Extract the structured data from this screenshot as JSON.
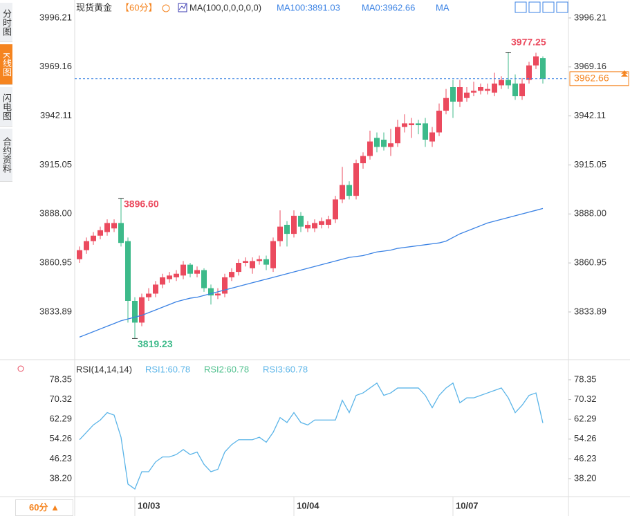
{
  "chart_data": [
    {
      "type": "candlestick",
      "title": "现货黄金",
      "period": "【60分】",
      "indicator": "MA(100,0,0,0,0,0)",
      "legend_extra": [
        "MA0:3962.66",
        "MA"
      ],
      "categories": [
        null,
        null,
        null,
        null,
        null,
        null,
        null,
        null,
        "10/03",
        null,
        null,
        null,
        null,
        null,
        null,
        null,
        null,
        null,
        null,
        null,
        null,
        null,
        null,
        null,
        null,
        null,
        null,
        null,
        null,
        null,
        null,
        "10/04",
        null,
        null,
        null,
        null,
        null,
        null,
        null,
        null,
        null,
        null,
        null,
        null,
        null,
        null,
        null,
        null,
        null,
        null,
        null,
        null,
        null,
        null,
        "10/07",
        null,
        null,
        null,
        null,
        null,
        null,
        null,
        null,
        null,
        null,
        null,
        null,
        null
      ],
      "open": [
        3863,
        3868,
        3873,
        3876,
        3878,
        3880,
        3883,
        3873,
        3840,
        3828,
        3842,
        3844,
        3849,
        3852,
        3853,
        3854,
        3860,
        3855,
        3857,
        3847,
        3843,
        3844,
        3853,
        3856,
        3861,
        3858,
        3862,
        3863,
        3858,
        3873,
        3882,
        3877,
        3887,
        3880,
        3880,
        3882,
        3882,
        3885,
        3896,
        3904,
        3898,
        3916,
        3920,
        3930,
        3929,
        3925,
        3927,
        3936,
        3937,
        3938,
        3938,
        3928,
        3933,
        3945,
        3958,
        3950,
        3952,
        3955,
        3956,
        3956,
        3955,
        3959,
        3962,
        3960,
        3953,
        3962,
        3970,
        3974
      ],
      "high": [
        3870,
        3875,
        3878,
        3881,
        3885,
        3885,
        3896.6,
        3875,
        3842,
        3844,
        3847,
        3851,
        3855,
        3856,
        3857,
        3862,
        3861,
        3859,
        3858,
        3849,
        3847,
        3855,
        3858,
        3863,
        3864,
        3864,
        3865,
        3865,
        3875,
        3890,
        3884,
        3890,
        3889,
        3884,
        3885,
        3886,
        3887,
        3898,
        3914,
        3906,
        3918,
        3922,
        3934,
        3933,
        3933,
        3935,
        3940,
        3943,
        3941,
        3940,
        3941,
        3936,
        3949,
        3957,
        3962,
        3962,
        3958,
        3961,
        3960,
        3960,
        3966,
        3964,
        3977.25,
        3965,
        3963,
        3972,
        3977,
        3975
      ],
      "low": [
        3861,
        3866,
        3871,
        3874,
        3876,
        3878,
        3870,
        3828,
        3819.23,
        3826,
        3840,
        3842,
        3847,
        3850,
        3851,
        3852,
        3853,
        3853,
        3845,
        3838,
        3841,
        3842,
        3851,
        3854,
        3859,
        3855,
        3860,
        3857,
        3856,
        3870,
        3870,
        3875,
        3878,
        3878,
        3878,
        3880,
        3880,
        3883,
        3894,
        3896,
        3896,
        3913,
        3918,
        3922,
        3923,
        3920,
        3925,
        3933,
        3930,
        3932,
        3925,
        3925,
        3931,
        3943,
        3941,
        3947,
        3950,
        3953,
        3954,
        3954,
        3953,
        3957,
        3957,
        3951,
        3951,
        3960,
        3968,
        3960
      ],
      "close": [
        3868,
        3873,
        3876,
        3879,
        3883,
        3883,
        3872,
        3840,
        3828,
        3842,
        3844,
        3849,
        3853,
        3854,
        3855,
        3860,
        3855,
        3857,
        3847,
        3843,
        3844,
        3853,
        3856,
        3861,
        3862,
        3862,
        3863,
        3860,
        3873,
        3881,
        3877,
        3887,
        3881,
        3882,
        3883,
        3884,
        3885,
        3896,
        3904,
        3898,
        3916,
        3920,
        3928,
        3925,
        3925,
        3927,
        3936,
        3938,
        3938,
        3937,
        3929,
        3933,
        3945,
        3952,
        3950,
        3958,
        3955,
        3956,
        3958,
        3957,
        3960,
        3962,
        3959,
        3953,
        3960,
        3970,
        3975,
        3962.66
      ],
      "up_color": "#eb4a5e",
      "down_color": "#3dba8a",
      "series": [
        {
          "name": "MA100:3891.03",
          "color": "#3a82e4",
          "values": [
            3820,
            3821.5,
            3823,
            3824.5,
            3826,
            3827.5,
            3829,
            3830,
            3831,
            3832,
            3833.5,
            3835,
            3836.5,
            3838,
            3839.5,
            3840.5,
            3841.5,
            3842,
            3843,
            3844,
            3845,
            3846,
            3847,
            3848,
            3849,
            3850,
            3851,
            3852,
            3853,
            3854,
            3855,
            3856,
            3857,
            3858,
            3859,
            3860,
            3861,
            3862,
            3863,
            3864,
            3864.5,
            3865,
            3866,
            3867,
            3867.5,
            3868,
            3869,
            3869.5,
            3870,
            3870.5,
            3871,
            3871.5,
            3872,
            3873,
            3875,
            3877,
            3878.5,
            3880,
            3881.5,
            3883,
            3884,
            3885,
            3886,
            3887,
            3888,
            3889,
            3890,
            3891.03
          ]
        }
      ],
      "last_price": 3962.66,
      "annotations": [
        {
          "value": 3896.6,
          "label": "3896.60"
        },
        3819.23,
        3977.25
      ],
      "ylim": [
        3808.3,
        4002.3
      ],
      "yticks": [
        3996.21,
        3969.16,
        3942.11,
        3915.05,
        {
          "value": 3888,
          "label": "3888.00"
        },
        3860.95,
        3833.89
      ]
    },
    {
      "type": "line",
      "title": "RSI(14,14,14)",
      "series": [
        {
          "name": "RSI1:60.78",
          "color": "#5ab4e8",
          "values": [
            54,
            57,
            60,
            62,
            65,
            64,
            55,
            36,
            34,
            41,
            41,
            45,
            47,
            47,
            48,
            50,
            48,
            49,
            44,
            41,
            42,
            49,
            52,
            54,
            54,
            54,
            55,
            53,
            57,
            63,
            61,
            65,
            61,
            60,
            62,
            62,
            62,
            62,
            70,
            65,
            72,
            73,
            75,
            77,
            72,
            73,
            75,
            75,
            75,
            75,
            72,
            67,
            72,
            75,
            77,
            69,
            71,
            71,
            72,
            73,
            74,
            75,
            71,
            65,
            68,
            72,
            73,
            60.78
          ]
        }
      ],
      "legend_extra": [
        {
          "name": "RSI2:60.78",
          "color": "#4fc08d"
        },
        {
          "name": "RSI3:60.78",
          "color": "#5ab4e8"
        }
      ],
      "ylim": [
        30.9,
        85.93
      ],
      "yticks": [
        78.35,
        70.32,
        62.29,
        54.26,
        46.23,
        {
          "value": 38.2,
          "label": "38.20"
        }
      ]
    }
  ],
  "sidebar": [
    "分时图",
    "K线图",
    "闪电图",
    "合约资料"
  ],
  "period_button": "60分 ▲"
}
